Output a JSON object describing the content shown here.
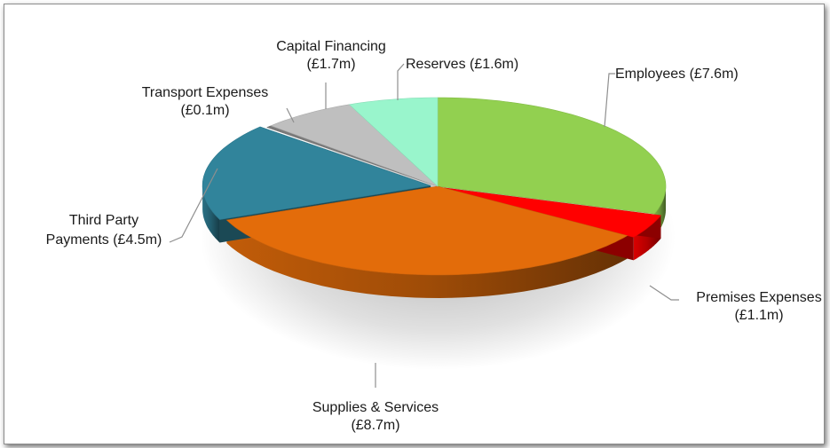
{
  "chart_data": {
    "type": "pie",
    "title": "",
    "slices": [
      {
        "label": "Employees",
        "value_label": "(£7.6m)",
        "value": 7.6,
        "color": "#92d050"
      },
      {
        "label": "Premises Expenses",
        "value_label": "(£1.1m)",
        "value": 1.1,
        "color": "#ff0000"
      },
      {
        "label": "Supplies & Services",
        "value_label": "(£8.7m)",
        "value": 8.7,
        "color": "#e36c0a"
      },
      {
        "label": "Third Party Payments",
        "value_label": "(£4.5m)",
        "value": 4.5,
        "color": "#31849b"
      },
      {
        "label": "Transport Expenses",
        "value_label": "(£0.1m)",
        "value": 0.1,
        "color": "#7a7a7a"
      },
      {
        "label": "Capital Financing",
        "value_label": "(£1.7m)",
        "value": 1.7,
        "color": "#bfbfbf"
      },
      {
        "label": "Reserves",
        "value_label": "(£1.6m)",
        "value": 1.6,
        "color": "#99f5cc"
      }
    ],
    "labels": {
      "employees": "Employees  (£7.6m)",
      "premises_1": "Premises Expenses",
      "premises_2": "(£1.1m)",
      "supplies_1": "Supplies & Services",
      "supplies_2": "(£8.7m)",
      "third_1": "Third Party",
      "third_2": "Payments (£4.5m)",
      "transport_1": "Transport Expenses",
      "transport_2": "(£0.1m)",
      "capital_1": "Capital Financing",
      "capital_2": "(£1.7m)",
      "reserves": "Reserves (£1.6m)"
    },
    "legend": "none"
  }
}
